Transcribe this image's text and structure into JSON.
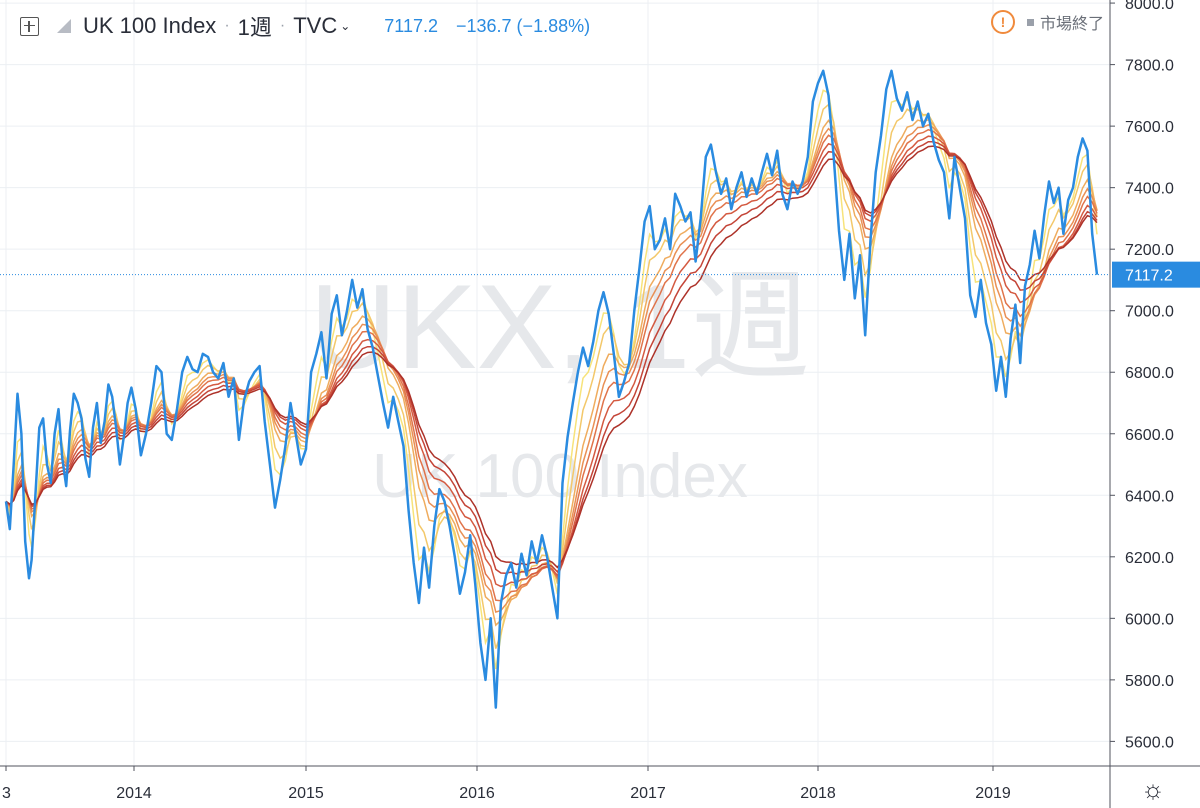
{
  "header": {
    "symbol": "UK 100 Index",
    "timeframe": "1週",
    "exchange": "TVC",
    "last_price": "7117.2",
    "change": "−136.7 (−1.88%)"
  },
  "market_status": {
    "text": "市場終了"
  },
  "watermark": {
    "line1": "UKX, 1週",
    "line2": "UK 100 Index"
  },
  "icons": {
    "add": "add-symbol-icon",
    "flag": "flag-icon",
    "chevron": "chevron-down-icon",
    "warning": "warning-icon",
    "settings": "gear-icon"
  },
  "colors": {
    "price": "#2a8be0",
    "ribbon": [
      "#f7e37a",
      "#f3c86a",
      "#efac5e",
      "#e99055",
      "#e0744b",
      "#d45a41",
      "#c44538",
      "#ad3229"
    ],
    "grid": "#eceff3"
  },
  "chart_data": {
    "type": "line",
    "title": "UK 100 Index",
    "y_ticks": [
      "8000.0",
      "7800.0",
      "7600.0",
      "7400.0",
      "7200.0",
      "7000.0",
      "6800.0",
      "6600.0",
      "6400.0",
      "6200.0",
      "6000.0",
      "5800.0",
      "5600.0"
    ],
    "x_ticks": [
      "3",
      "2014",
      "2015",
      "2016",
      "2017",
      "2018",
      "2019"
    ],
    "ylim": [
      5520,
      8010
    ],
    "xlim": [
      2013.0,
      2019.65
    ],
    "last_value_label": "7117.2",
    "grid": true,
    "series": [
      {
        "values": [
          [
            2013.0,
            6380
          ],
          [
            2013.03,
            6290
          ],
          [
            2013.06,
            6500
          ],
          [
            2013.09,
            6730
          ],
          [
            2013.12,
            6600
          ],
          [
            2013.15,
            6250
          ],
          [
            2013.18,
            6130
          ],
          [
            2013.2,
            6190
          ],
          [
            2013.23,
            6400
          ],
          [
            2013.26,
            6620
          ],
          [
            2013.29,
            6650
          ],
          [
            2013.32,
            6500
          ],
          [
            2013.35,
            6440
          ],
          [
            2013.38,
            6600
          ],
          [
            2013.41,
            6680
          ],
          [
            2013.44,
            6520
          ],
          [
            2013.47,
            6430
          ],
          [
            2013.5,
            6610
          ],
          [
            2013.53,
            6730
          ],
          [
            2013.56,
            6700
          ],
          [
            2013.59,
            6650
          ],
          [
            2013.62,
            6520
          ],
          [
            2013.65,
            6460
          ],
          [
            2013.68,
            6620
          ],
          [
            2013.71,
            6700
          ],
          [
            2013.74,
            6570
          ],
          [
            2013.77,
            6640
          ],
          [
            2013.8,
            6760
          ],
          [
            2013.83,
            6720
          ],
          [
            2013.86,
            6620
          ],
          [
            2013.89,
            6500
          ],
          [
            2013.92,
            6590
          ],
          [
            2013.95,
            6700
          ],
          [
            2013.98,
            6750
          ],
          [
            2014.01,
            6680
          ],
          [
            2014.04,
            6530
          ],
          [
            2014.07,
            6600
          ],
          [
            2014.1,
            6700
          ],
          [
            2014.13,
            6820
          ],
          [
            2014.16,
            6800
          ],
          [
            2014.19,
            6600
          ],
          [
            2014.22,
            6580
          ],
          [
            2014.25,
            6680
          ],
          [
            2014.28,
            6800
          ],
          [
            2014.31,
            6850
          ],
          [
            2014.34,
            6810
          ],
          [
            2014.37,
            6800
          ],
          [
            2014.4,
            6860
          ],
          [
            2014.43,
            6850
          ],
          [
            2014.46,
            6800
          ],
          [
            2014.49,
            6780
          ],
          [
            2014.52,
            6830
          ],
          [
            2014.55,
            6720
          ],
          [
            2014.58,
            6780
          ],
          [
            2014.61,
            6580
          ],
          [
            2014.64,
            6710
          ],
          [
            2014.67,
            6770
          ],
          [
            2014.7,
            6800
          ],
          [
            2014.73,
            6820
          ],
          [
            2014.76,
            6640
          ],
          [
            2014.79,
            6500
          ],
          [
            2014.82,
            6360
          ],
          [
            2014.85,
            6450
          ],
          [
            2014.88,
            6560
          ],
          [
            2014.91,
            6700
          ],
          [
            2014.94,
            6600
          ],
          [
            2014.97,
            6500
          ],
          [
            2015.0,
            6550
          ],
          [
            2015.03,
            6800
          ],
          [
            2015.06,
            6860
          ],
          [
            2015.09,
            6930
          ],
          [
            2015.12,
            6780
          ],
          [
            2015.15,
            6990
          ],
          [
            2015.18,
            7050
          ],
          [
            2015.21,
            6920
          ],
          [
            2015.24,
            7000
          ],
          [
            2015.27,
            7100
          ],
          [
            2015.3,
            7010
          ],
          [
            2015.33,
            7070
          ],
          [
            2015.36,
            6940
          ],
          [
            2015.39,
            6880
          ],
          [
            2015.42,
            6790
          ],
          [
            2015.45,
            6700
          ],
          [
            2015.48,
            6620
          ],
          [
            2015.51,
            6720
          ],
          [
            2015.54,
            6640
          ],
          [
            2015.57,
            6560
          ],
          [
            2015.6,
            6350
          ],
          [
            2015.63,
            6180
          ],
          [
            2015.66,
            6050
          ],
          [
            2015.69,
            6230
          ],
          [
            2015.72,
            6100
          ],
          [
            2015.75,
            6300
          ],
          [
            2015.78,
            6420
          ],
          [
            2015.81,
            6380
          ],
          [
            2015.84,
            6300
          ],
          [
            2015.87,
            6200
          ],
          [
            2015.9,
            6080
          ],
          [
            2015.93,
            6150
          ],
          [
            2015.96,
            6270
          ],
          [
            2015.99,
            6110
          ],
          [
            2016.02,
            5920
          ],
          [
            2016.05,
            5800
          ],
          [
            2016.08,
            6000
          ],
          [
            2016.11,
            5710
          ],
          [
            2016.14,
            6050
          ],
          [
            2016.17,
            6140
          ],
          [
            2016.2,
            6180
          ],
          [
            2016.23,
            6100
          ],
          [
            2016.26,
            6210
          ],
          [
            2016.29,
            6140
          ],
          [
            2016.32,
            6250
          ],
          [
            2016.35,
            6180
          ],
          [
            2016.38,
            6270
          ],
          [
            2016.41,
            6200
          ],
          [
            2016.44,
            6100
          ],
          [
            2016.47,
            6000
          ],
          [
            2016.5,
            6440
          ],
          [
            2016.53,
            6590
          ],
          [
            2016.56,
            6700
          ],
          [
            2016.59,
            6800
          ],
          [
            2016.62,
            6880
          ],
          [
            2016.65,
            6820
          ],
          [
            2016.68,
            6900
          ],
          [
            2016.71,
            7000
          ],
          [
            2016.74,
            7060
          ],
          [
            2016.77,
            6990
          ],
          [
            2016.8,
            6860
          ],
          [
            2016.83,
            6720
          ],
          [
            2016.86,
            6770
          ],
          [
            2016.89,
            6830
          ],
          [
            2016.92,
            7000
          ],
          [
            2016.95,
            7140
          ],
          [
            2016.98,
            7290
          ],
          [
            2017.01,
            7340
          ],
          [
            2017.04,
            7200
          ],
          [
            2017.07,
            7230
          ],
          [
            2017.1,
            7300
          ],
          [
            2017.13,
            7200
          ],
          [
            2017.16,
            7380
          ],
          [
            2017.19,
            7340
          ],
          [
            2017.22,
            7290
          ],
          [
            2017.25,
            7320
          ],
          [
            2017.28,
            7160
          ],
          [
            2017.31,
            7300
          ],
          [
            2017.34,
            7500
          ],
          [
            2017.37,
            7540
          ],
          [
            2017.4,
            7450
          ],
          [
            2017.43,
            7380
          ],
          [
            2017.46,
            7430
          ],
          [
            2017.49,
            7330
          ],
          [
            2017.52,
            7400
          ],
          [
            2017.55,
            7450
          ],
          [
            2017.58,
            7370
          ],
          [
            2017.61,
            7430
          ],
          [
            2017.64,
            7380
          ],
          [
            2017.67,
            7450
          ],
          [
            2017.7,
            7510
          ],
          [
            2017.73,
            7440
          ],
          [
            2017.76,
            7520
          ],
          [
            2017.79,
            7380
          ],
          [
            2017.82,
            7330
          ],
          [
            2017.85,
            7420
          ],
          [
            2017.88,
            7380
          ],
          [
            2017.91,
            7420
          ],
          [
            2017.94,
            7500
          ],
          [
            2017.97,
            7680
          ],
          [
            2018.0,
            7740
          ],
          [
            2018.03,
            7780
          ],
          [
            2018.06,
            7700
          ],
          [
            2018.09,
            7500
          ],
          [
            2018.12,
            7260
          ],
          [
            2018.15,
            7100
          ],
          [
            2018.18,
            7250
          ],
          [
            2018.21,
            7040
          ],
          [
            2018.24,
            7180
          ],
          [
            2018.27,
            6920
          ],
          [
            2018.3,
            7230
          ],
          [
            2018.33,
            7450
          ],
          [
            2018.36,
            7570
          ],
          [
            2018.39,
            7720
          ],
          [
            2018.42,
            7780
          ],
          [
            2018.45,
            7690
          ],
          [
            2018.48,
            7650
          ],
          [
            2018.51,
            7710
          ],
          [
            2018.54,
            7620
          ],
          [
            2018.57,
            7680
          ],
          [
            2018.6,
            7600
          ],
          [
            2018.63,
            7640
          ],
          [
            2018.66,
            7550
          ],
          [
            2018.69,
            7490
          ],
          [
            2018.72,
            7450
          ],
          [
            2018.75,
            7300
          ],
          [
            2018.78,
            7500
          ],
          [
            2018.81,
            7400
          ],
          [
            2018.84,
            7300
          ],
          [
            2018.87,
            7050
          ],
          [
            2018.9,
            6980
          ],
          [
            2018.93,
            7100
          ],
          [
            2018.96,
            6960
          ],
          [
            2018.99,
            6890
          ],
          [
            2019.02,
            6740
          ],
          [
            2019.05,
            6850
          ],
          [
            2019.08,
            6720
          ],
          [
            2019.11,
            6910
          ],
          [
            2019.14,
            7020
          ],
          [
            2019.17,
            6830
          ],
          [
            2019.2,
            7080
          ],
          [
            2019.23,
            7150
          ],
          [
            2019.26,
            7260
          ],
          [
            2019.29,
            7170
          ],
          [
            2019.32,
            7310
          ],
          [
            2019.35,
            7420
          ],
          [
            2019.38,
            7350
          ],
          [
            2019.41,
            7400
          ],
          [
            2019.44,
            7250
          ],
          [
            2019.47,
            7360
          ],
          [
            2019.5,
            7400
          ],
          [
            2019.53,
            7500
          ],
          [
            2019.56,
            7560
          ],
          [
            2019.59,
            7520
          ],
          [
            2019.62,
            7250
          ],
          [
            2019.65,
            7117
          ]
        ]
      }
    ]
  }
}
